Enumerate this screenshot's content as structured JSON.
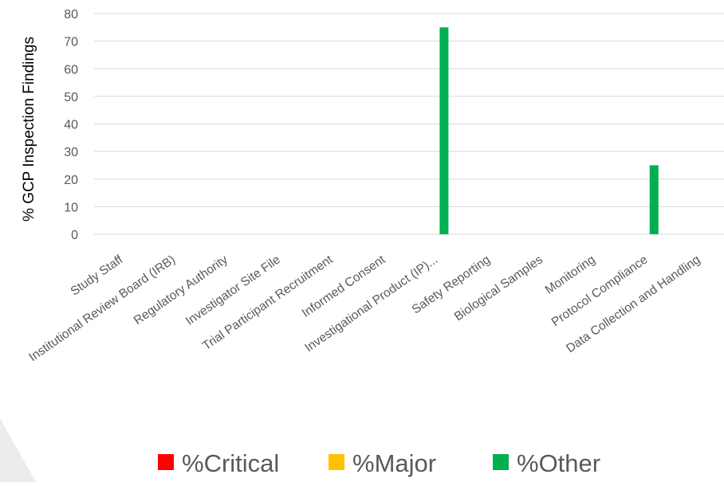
{
  "chart_data": {
    "type": "bar",
    "title": "",
    "xlabel": "",
    "ylabel": "% GCP Inspection Findings",
    "ylim": [
      0,
      80
    ],
    "yticks": [
      0,
      10,
      20,
      30,
      40,
      50,
      60,
      70,
      80
    ],
    "grid": true,
    "legend_position": "bottom",
    "categories": [
      "Study Staff",
      "Institutional Review Board (IRB)",
      "Regulatory Authority",
      "Investigator Site File",
      "Trial Participant Recruitment",
      "Informed Consent",
      "Investigational Product (IP)...",
      "Safety Reporting",
      "Biological Samples",
      "Monitoring",
      "Protocol Compliance",
      "Data Collection and Handling"
    ],
    "series": [
      {
        "name": "%Critical",
        "color": "#ff0000",
        "values": [
          0,
          0,
          0,
          0,
          0,
          0,
          0,
          0,
          0,
          0,
          0,
          0
        ]
      },
      {
        "name": "%Major",
        "color": "#ffc000",
        "values": [
          0,
          0,
          0,
          0,
          0,
          0,
          0,
          0,
          0,
          0,
          0,
          0
        ]
      },
      {
        "name": "%Other",
        "color": "#00b050",
        "values": [
          0,
          0,
          0,
          0,
          0,
          0,
          75,
          0,
          0,
          0,
          25,
          0
        ]
      }
    ],
    "colors": {
      "grid": "#d9d9d9",
      "tick_text": "#595959",
      "axis_title": "#000000"
    }
  }
}
